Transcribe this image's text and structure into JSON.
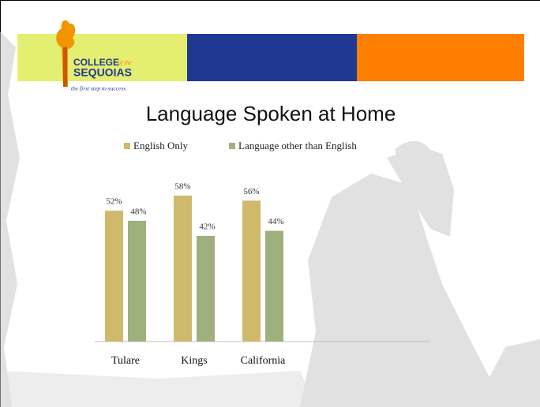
{
  "header": {
    "college": "COLLEGE",
    "of_the": "of the",
    "name": "SEQUOIAS",
    "tagline": "the first step to success"
  },
  "chart_data": {
    "type": "bar",
    "title": "Language Spoken at Home",
    "categories": [
      "Tulare",
      "Kings",
      "California"
    ],
    "series": [
      {
        "name": "English Only",
        "color": "#cfb96b",
        "values": [
          52,
          58,
          56
        ],
        "value_labels": [
          "52%",
          "58%",
          "56%"
        ]
      },
      {
        "name": "Language other than English",
        "color": "#9fb07f",
        "values": [
          48,
          42,
          44
        ],
        "value_labels": [
          "48%",
          "42%",
          "44%"
        ]
      }
    ],
    "legend": "top"
  }
}
